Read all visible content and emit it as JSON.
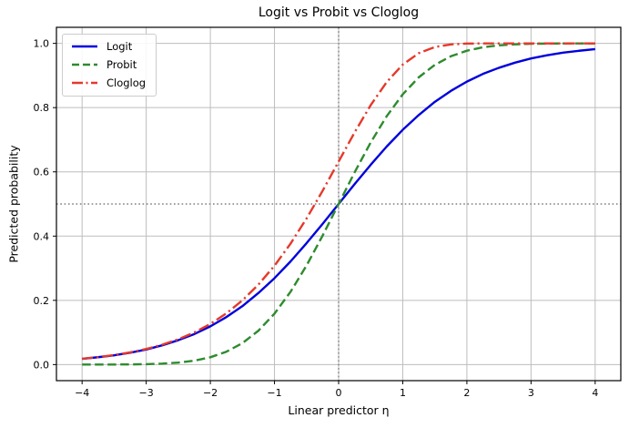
{
  "chart_data": {
    "type": "line",
    "title": "Logit vs Probit vs Cloglog",
    "xlabel": "Linear predictor η",
    "ylabel": "Predicted probability",
    "xlim": [
      -4.4,
      4.4
    ],
    "ylim": [
      -0.05,
      1.05
    ],
    "grid": true,
    "grid_color": "#bdbdbd",
    "axis_color": "#000000",
    "legend_position": "upper left",
    "xticks": {
      "values": [
        -4,
        -3,
        -2,
        -1,
        0,
        1,
        2,
        3,
        4
      ],
      "labels": [
        "−4",
        "−3",
        "−2",
        "−1",
        "0",
        "1",
        "2",
        "3",
        "4"
      ]
    },
    "yticks": {
      "values": [
        0.0,
        0.2,
        0.4,
        0.6,
        0.8,
        1.0
      ],
      "labels": [
        "0.0",
        "0.2",
        "0.4",
        "0.6",
        "0.8",
        "1.0"
      ]
    },
    "reference_lines": [
      {
        "orientation": "horizontal",
        "value": 0.5,
        "color": "#7f7f7f",
        "linestyle": "dotted"
      },
      {
        "orientation": "vertical",
        "value": 0.0,
        "color": "#7f7f7f",
        "linestyle": "dotted"
      }
    ],
    "x": [
      -4,
      -3.75,
      -3.5,
      -3.25,
      -3,
      -2.75,
      -2.5,
      -2.25,
      -2,
      -1.75,
      -1.5,
      -1.25,
      -1,
      -0.75,
      -0.5,
      -0.25,
      0,
      0.25,
      0.5,
      0.75,
      1,
      1.25,
      1.5,
      1.75,
      2,
      2.25,
      2.5,
      2.75,
      3,
      3.25,
      3.5,
      3.75,
      4
    ],
    "series": [
      {
        "name": "Logit",
        "color": "#0000dd",
        "linestyle": "solid",
        "values": [
          0.018,
          0.023,
          0.029,
          0.037,
          0.047,
          0.06,
          0.076,
          0.095,
          0.119,
          0.148,
          0.182,
          0.223,
          0.269,
          0.321,
          0.378,
          0.438,
          0.5,
          0.562,
          0.622,
          0.679,
          0.731,
          0.777,
          0.818,
          0.852,
          0.881,
          0.905,
          0.924,
          0.94,
          0.953,
          0.963,
          0.971,
          0.977,
          0.982
        ]
      },
      {
        "name": "Probit",
        "color": "#2e8b2e",
        "linestyle": "dashed",
        "values": [
          3e-05,
          9e-05,
          0.00023,
          0.00058,
          0.0013,
          0.003,
          0.0062,
          0.0122,
          0.0228,
          0.0401,
          0.0668,
          0.1056,
          0.1587,
          0.2266,
          0.3085,
          0.4013,
          0.5,
          0.5987,
          0.6915,
          0.7734,
          0.8413,
          0.8944,
          0.9332,
          0.9599,
          0.9772,
          0.9878,
          0.9938,
          0.997,
          0.9987,
          0.9994,
          0.9998,
          0.9999,
          1.0
        ]
      },
      {
        "name": "Cloglog",
        "color": "#e5392b",
        "linestyle": "dashdot",
        "values": [
          0.0182,
          0.0233,
          0.0298,
          0.038,
          0.0486,
          0.0619,
          0.0788,
          0.1,
          0.1266,
          0.1595,
          0.2,
          0.2491,
          0.3078,
          0.3765,
          0.4548,
          0.541,
          0.6321,
          0.7231,
          0.8077,
          0.8796,
          0.934,
          0.9695,
          0.9887,
          0.9968,
          0.9994,
          0.9999,
          1.0,
          1.0,
          1.0,
          1.0,
          1.0,
          1.0,
          1.0
        ]
      }
    ]
  }
}
